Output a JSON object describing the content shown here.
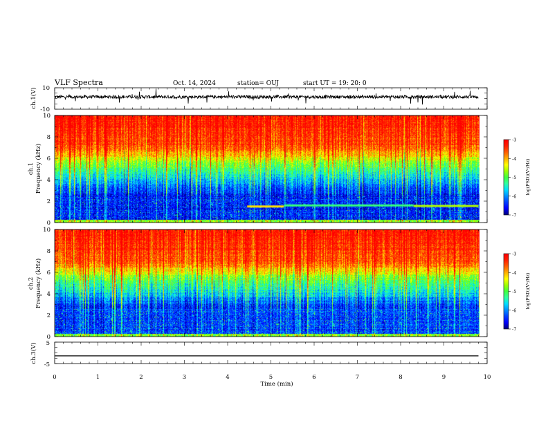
{
  "header": {
    "title": "VLF Spectra",
    "date": "Oct. 14, 2024",
    "station": "station= OUJ",
    "start": "start  UT  =   19: 20: 0"
  },
  "colors": {
    "colormap": [
      "#000080",
      "#0000ff",
      "#0040ff",
      "#0090ff",
      "#00e0ff",
      "#30ffa0",
      "#40ff40",
      "#a0ff00",
      "#ffff00",
      "#ffb000",
      "#ff6000",
      "#ff2000",
      "#ff0000"
    ],
    "trace": "#000000",
    "background": "#ffffff"
  },
  "chart_data": [
    {
      "type": "line",
      "name": "ch1-waveform",
      "ylabel": "ch.1(V)",
      "ylim": [
        -10,
        10
      ],
      "yticks": [
        "10",
        "-10"
      ],
      "baseline": 1.5,
      "noise_amplitude": 2.5
    },
    {
      "type": "heatmap",
      "name": "ch1-spectrogram",
      "ylabel": "ch.1\nFrequency (kHz)",
      "ylim": [
        0,
        10
      ],
      "yticks": [
        "0",
        "2",
        "4",
        "6",
        "8",
        "10"
      ],
      "xlim": [
        0,
        9.8
      ],
      "band_features": [
        {
          "type": "tone",
          "freq_khz": 1.5,
          "t_start_min": 4.45,
          "t_end_min": 5.3,
          "level": -4.2
        },
        {
          "type": "tone",
          "freq_khz": 1.6,
          "t_start_min": 5.3,
          "t_end_min": 8.3,
          "level": -5.2
        },
        {
          "type": "tone",
          "freq_khz": 1.55,
          "t_start_min": 8.3,
          "t_end_min": 9.8,
          "level": -4.6
        }
      ],
      "colorbar": {
        "label": "log(PSD)(V²/Hz)",
        "min": -7,
        "max": -3,
        "ticks": [
          "-3",
          "-4",
          "-5",
          "-6",
          "-7"
        ]
      }
    },
    {
      "type": "heatmap",
      "name": "ch2-spectrogram",
      "ylabel": "ch.2\nFrequency (kHz)",
      "ylim": [
        0,
        10
      ],
      "yticks": [
        "0",
        "2",
        "4",
        "6",
        "8",
        "10"
      ],
      "xlim": [
        0,
        9.8
      ],
      "colorbar": {
        "label": "log(PSD)(V²/Hz)",
        "min": -7,
        "max": -3,
        "ticks": [
          "-3",
          "-4",
          "-5",
          "-6",
          "-7"
        ]
      }
    },
    {
      "type": "line",
      "name": "ch3-waveform",
      "ylabel": "ch.3(V)",
      "ylim": [
        -5,
        5
      ],
      "yticks": [
        "5",
        "0",
        "-5"
      ],
      "baseline": -1.4
    }
  ],
  "xaxis": {
    "label": "Time (min)",
    "ticks": [
      "0",
      "1",
      "2",
      "3",
      "4",
      "5",
      "6",
      "7",
      "8",
      "9",
      "10"
    ],
    "xlim": [
      0,
      10
    ]
  }
}
